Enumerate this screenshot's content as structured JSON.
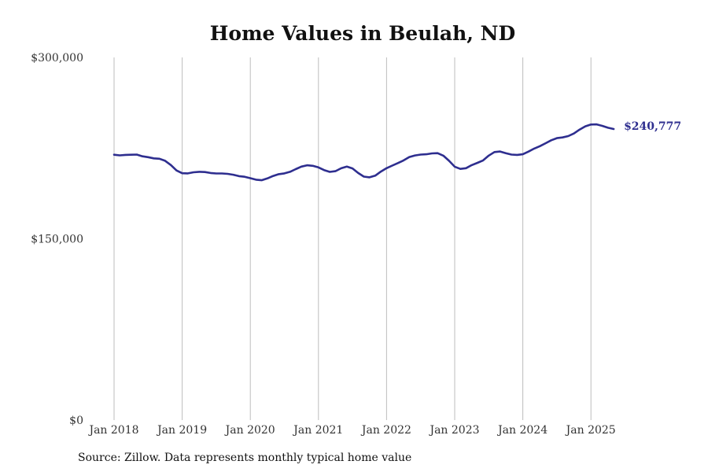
{
  "chart_data": {
    "type": "line",
    "title": "Home Values in Beulah, ND",
    "xlabel": "",
    "ylabel": "",
    "ylim": [
      0,
      300000
    ],
    "y_ticks": [
      {
        "value": 0,
        "label": "$0"
      },
      {
        "value": 150000,
        "label": "$150,000"
      },
      {
        "value": 300000,
        "label": "$300,000"
      }
    ],
    "x_ticks": [
      {
        "value": "2018-01",
        "label": "Jan 2018"
      },
      {
        "value": "2019-01",
        "label": "Jan 2019"
      },
      {
        "value": "2020-01",
        "label": "Jan 2020"
      },
      {
        "value": "2021-01",
        "label": "Jan 2021"
      },
      {
        "value": "2022-01",
        "label": "Jan 2022"
      },
      {
        "value": "2023-01",
        "label": "Jan 2023"
      },
      {
        "value": "2024-01",
        "label": "Jan 2024"
      },
      {
        "value": "2025-01",
        "label": "Jan 2025"
      }
    ],
    "grid": {
      "vertical": true,
      "horizontal": false
    },
    "legend": "none",
    "series": [
      {
        "color": "#2e2e8f",
        "x": [
          "2018-01",
          "2018-02",
          "2018-03",
          "2018-04",
          "2018-05",
          "2018-06",
          "2018-07",
          "2018-08",
          "2018-09",
          "2018-10",
          "2018-11",
          "2018-12",
          "2019-01",
          "2019-02",
          "2019-03",
          "2019-04",
          "2019-05",
          "2019-06",
          "2019-07",
          "2019-08",
          "2019-09",
          "2019-10",
          "2019-11",
          "2019-12",
          "2020-01",
          "2020-02",
          "2020-03",
          "2020-04",
          "2020-05",
          "2020-06",
          "2020-07",
          "2020-08",
          "2020-09",
          "2020-10",
          "2020-11",
          "2020-12",
          "2021-01",
          "2021-02",
          "2021-03",
          "2021-04",
          "2021-05",
          "2021-06",
          "2021-07",
          "2021-08",
          "2021-09",
          "2021-10",
          "2021-11",
          "2021-12",
          "2022-01",
          "2022-02",
          "2022-03",
          "2022-04",
          "2022-05",
          "2022-06",
          "2022-07",
          "2022-08",
          "2022-09",
          "2022-10",
          "2022-11",
          "2022-12",
          "2023-01",
          "2023-02",
          "2023-03",
          "2023-04",
          "2023-05",
          "2023-06",
          "2023-07",
          "2023-08",
          "2023-09",
          "2023-10",
          "2023-11",
          "2023-12",
          "2024-01",
          "2024-02",
          "2024-03",
          "2024-04",
          "2024-05",
          "2024-06",
          "2024-07",
          "2024-08",
          "2024-09",
          "2024-10",
          "2024-11",
          "2024-12",
          "2025-01",
          "2025-02",
          "2025-03",
          "2025-04",
          "2025-05"
        ],
        "values": [
          219500,
          219000,
          219400,
          219500,
          219600,
          218200,
          217500,
          216500,
          216200,
          214500,
          211000,
          206500,
          204200,
          204100,
          205000,
          205400,
          205200,
          204400,
          204000,
          204000,
          203700,
          203000,
          201800,
          201300,
          200100,
          198900,
          198400,
          199900,
          201900,
          203400,
          204100,
          205400,
          207600,
          209700,
          210800,
          210300,
          209000,
          206800,
          205300,
          205900,
          208300,
          209700,
          208200,
          204400,
          201400,
          200800,
          202200,
          205600,
          208400,
          210500,
          212600,
          214800,
          217600,
          218900,
          219600,
          219900,
          220600,
          220800,
          218700,
          214500,
          209600,
          207800,
          208400,
          210900,
          212800,
          214800,
          218800,
          221700,
          222200,
          220800,
          219600,
          219400,
          219900,
          222100,
          224600,
          226600,
          229000,
          231500,
          233200,
          233800,
          234900,
          237100,
          240300,
          243000,
          244500,
          244600,
          243400,
          241800,
          240777
        ]
      }
    ],
    "end_label": "$240,777"
  },
  "source_note": "Source: Zillow. Data represents monthly typical home value"
}
